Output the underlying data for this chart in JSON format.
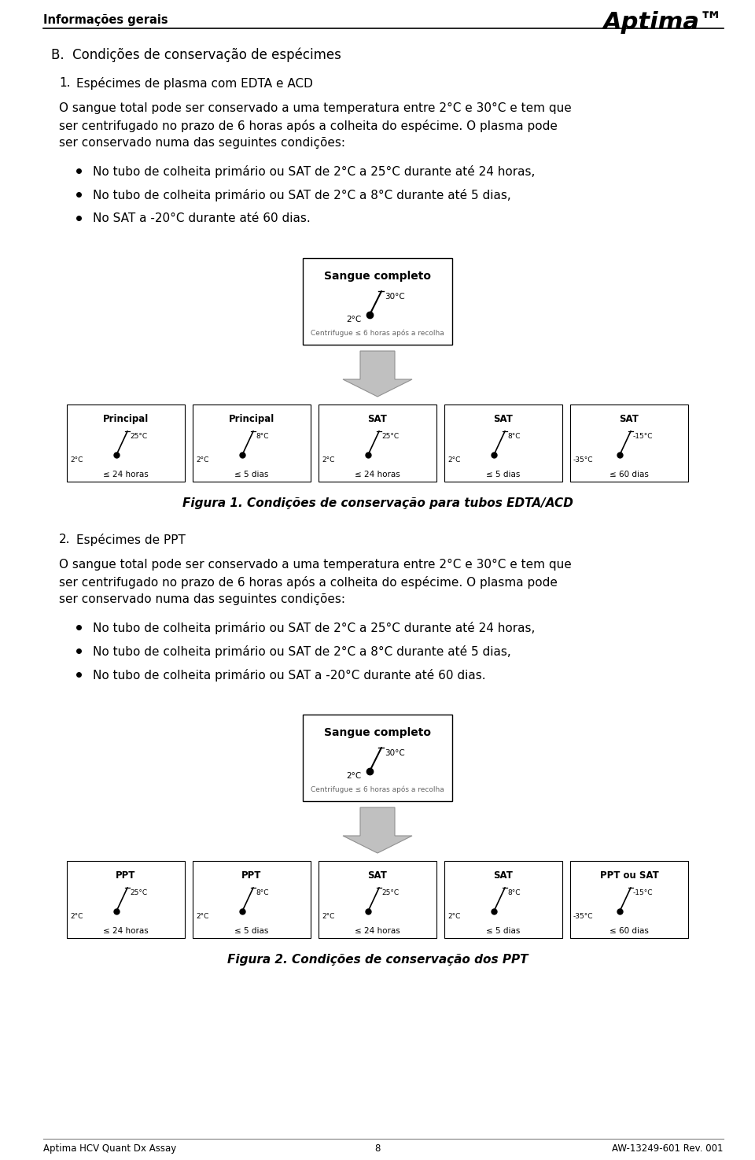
{
  "header_left": "Informações gerais",
  "header_right": "Aptima™",
  "footer_left": "Aptima HCV Quant Dx Assay",
  "footer_center": "8",
  "footer_right": "AW-13249-601 Rev. 001",
  "section_title": "B.  Condições de conservação de espécimes",
  "subsection1_num": "1.",
  "subsection1_text": "Espécimes de plasma com EDTA e ACD",
  "body1_line1": "O sangue total pode ser conservado a uma temperatura entre 2°C e 30°C e tem que",
  "body1_line2": "ser centrifugado no prazo de 6 horas após a colheita do espécime. O plasma pode",
  "body1_line3": "ser conservado numa das seguintes condições:",
  "bullets1": [
    "No tubo de colheita primário ou SAT de 2°C a 25°C durante até 24 horas,",
    "No tubo de colheita primário ou SAT de 2°C a 8°C durante até 5 dias,",
    "No SAT a -20°C durante até 60 dias."
  ],
  "figure1_caption": "Figura 1. Condições de conservação para tubos EDTA/ACD",
  "subsection2_num": "2.",
  "subsection2_text": "Espécimes de PPT",
  "body2_line1": "O sangue total pode ser conservado a uma temperatura entre 2°C e 30°C e tem que",
  "body2_line2": "ser centrifugado no prazo de 6 horas após a colheita do espécime. O plasma pode",
  "body2_line3": "ser conservado numa das seguintes condições:",
  "bullets2": [
    "No tubo de colheita primário ou SAT de 2°C a 25°C durante até 24 horas,",
    "No tubo de colheita primário ou SAT de 2°C a 8°C durante até 5 dias,",
    "No tubo de colheita primário ou SAT a -20°C durante até 60 dias."
  ],
  "figure2_caption": "Figura 2. Condições de conservação dos PPT",
  "sangue_box_title": "Sangue completo",
  "sangue_box_temp_low": "2°C",
  "sangue_box_temp_high": "30°C",
  "sangue_box_note": "Centrifugue ≤ 6 horas após a recolha",
  "fig1_boxes": [
    {
      "label": "Principal",
      "temp_low": "2°C",
      "temp_high": "25°C",
      "time": "≤ 24 horas"
    },
    {
      "label": "Principal",
      "temp_low": "2°C",
      "temp_high": "8°C",
      "time": "≤ 5 dias"
    },
    {
      "label": "SAT",
      "temp_low": "2°C",
      "temp_high": "25°C",
      "time": "≤ 24 horas"
    },
    {
      "label": "SAT",
      "temp_low": "2°C",
      "temp_high": "8°C",
      "time": "≤ 5 dias"
    },
    {
      "label": "SAT",
      "temp_low": "-35°C",
      "temp_high": "-15°C",
      "time": "≤ 60 dias"
    }
  ],
  "fig2_boxes": [
    {
      "label": "PPT",
      "temp_low": "2°C",
      "temp_high": "25°C",
      "time": "≤ 24 horas"
    },
    {
      "label": "PPT",
      "temp_low": "2°C",
      "temp_high": "8°C",
      "time": "≤ 5 dias"
    },
    {
      "label": "SAT",
      "temp_low": "2°C",
      "temp_high": "25°C",
      "time": "≤ 24 horas"
    },
    {
      "label": "SAT",
      "temp_low": "2°C",
      "temp_high": "8°C",
      "time": "≤ 5 dias"
    },
    {
      "label": "PPT ou SAT",
      "temp_low": "-35°C",
      "temp_high": "-15°C",
      "time": "≤ 60 dias"
    }
  ]
}
